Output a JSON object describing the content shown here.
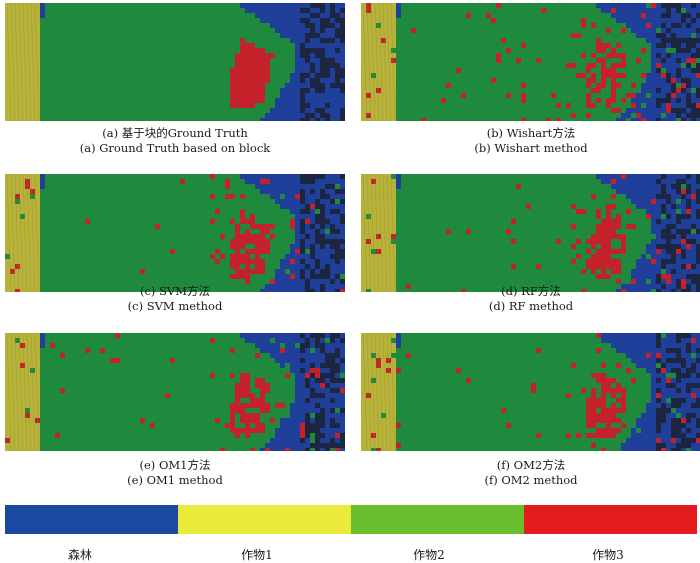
{
  "panels": [
    {
      "id": "a",
      "line1": "(a) 基于块的Ground Truth",
      "line2": "(a) Ground Truth based on block",
      "noise": 0.0
    },
    {
      "id": "b",
      "line1": "(b) Wishart方法",
      "line2": "(b) Wishart method",
      "noise": 0.2
    },
    {
      "id": "c",
      "line1": "(c) SVM方法",
      "line2": "(c) SVM method",
      "noise": 0.1
    },
    {
      "id": "d",
      "line1": "(d) RF方法",
      "line2": "(d) RF method",
      "noise": 0.12
    },
    {
      "id": "e",
      "line1": "(e) OM1方法",
      "line2": "(e) OM1 method",
      "noise": 0.14
    },
    {
      "id": "f",
      "line1": "(f) OM2方法",
      "line2": "(f) OM2 method",
      "noise": 0.13
    }
  ],
  "legend": [
    {
      "label": "森林",
      "color": "#1c49a0"
    },
    {
      "label": "作物1",
      "color": "#eaea3a"
    },
    {
      "label": "作物2",
      "color": "#6abf2f"
    },
    {
      "label": "作物3",
      "color": "#e41b1f"
    }
  ],
  "scene_colors": {
    "forest": "#1f3f9a",
    "crop1": "#b7b23a",
    "crop2": "#1f8a3e",
    "crop3": "#c4212a",
    "shadow": "#1c2640"
  }
}
